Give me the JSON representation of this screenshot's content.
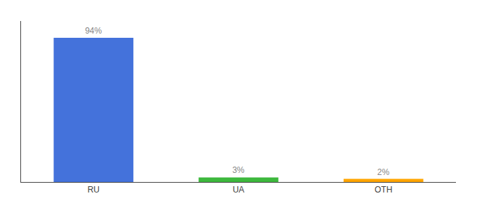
{
  "chart_data": {
    "type": "bar",
    "categories": [
      "RU",
      "UA",
      "OTH"
    ],
    "values": [
      94,
      3,
      2
    ],
    "value_labels": [
      "94%",
      "3%",
      "2%"
    ],
    "colors": [
      "#4472DB",
      "#3DB83D",
      "#FFA500"
    ],
    "ylim": [
      0,
      105
    ],
    "grid": false,
    "data_labels": true,
    "tick_labels": "x"
  }
}
